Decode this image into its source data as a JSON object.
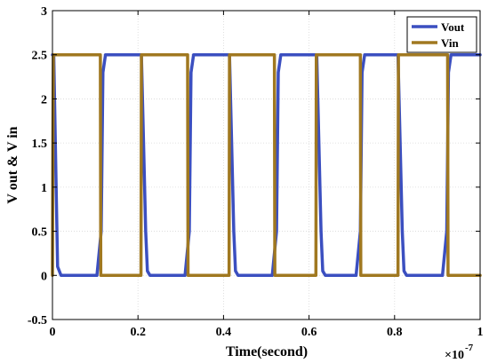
{
  "chart_data": {
    "type": "line",
    "xlabel": "Time(second)",
    "ylabel": "V out & V in",
    "x_exponent_label": "×10",
    "x_exponent_power": "-7",
    "xlim": [
      0,
      1
    ],
    "ylim": [
      -0.5,
      3
    ],
    "x_ticks": [
      0,
      0.2,
      0.4,
      0.6,
      0.8,
      1
    ],
    "x_tick_labels": [
      "0",
      "0.2",
      "0.4",
      "0.6",
      "0.8",
      "1"
    ],
    "y_ticks": [
      -0.5,
      0,
      0.5,
      1,
      1.5,
      2,
      2.5,
      3
    ],
    "y_tick_labels": [
      "-0.5",
      "0",
      "0.5",
      "1",
      "1.5",
      "2",
      "2.5",
      "3"
    ],
    "grid": true,
    "legend_position": "top-right",
    "series": [
      {
        "name": "Vout",
        "color": "#3b4fc0",
        "x": [
          0,
          0.003,
          0.012,
          0.02,
          0.104,
          0.114,
          0.118,
          0.124,
          0.208,
          0.218,
          0.222,
          0.228,
          0.31,
          0.32,
          0.324,
          0.33,
          0.414,
          0.424,
          0.428,
          0.434,
          0.514,
          0.524,
          0.528,
          0.534,
          0.618,
          0.628,
          0.632,
          0.638,
          0.71,
          0.72,
          0.724,
          0.73,
          0.808,
          0.818,
          0.822,
          0.828,
          0.912,
          0.922,
          0.926,
          0.932,
          1
        ],
        "y": [
          2.5,
          2.5,
          0.1,
          0,
          0,
          0.5,
          2.3,
          2.5,
          2.5,
          0.5,
          0.05,
          0,
          0,
          0.5,
          2.3,
          2.5,
          2.5,
          0.5,
          0.05,
          0,
          0,
          0.5,
          2.3,
          2.5,
          2.5,
          0.5,
          0.05,
          0,
          0,
          0.5,
          2.3,
          2.5,
          2.5,
          0.5,
          0.05,
          0,
          0,
          0.5,
          2.3,
          2.5,
          2.5
        ]
      },
      {
        "name": "Vin",
        "color": "#a07820",
        "x": [
          0,
          0.001,
          0.002,
          0.112,
          0.113,
          0.207,
          0.208,
          0.316,
          0.317,
          0.413,
          0.414,
          0.519,
          0.52,
          0.616,
          0.617,
          0.72,
          0.721,
          0.808,
          0.809,
          0.924,
          0.925,
          1
        ],
        "y": [
          0,
          1.5,
          2.5,
          2.5,
          0,
          0,
          2.5,
          2.5,
          0,
          0,
          2.5,
          2.5,
          0,
          0,
          2.5,
          2.5,
          0,
          0,
          2.5,
          2.5,
          0,
          0
        ]
      }
    ]
  }
}
